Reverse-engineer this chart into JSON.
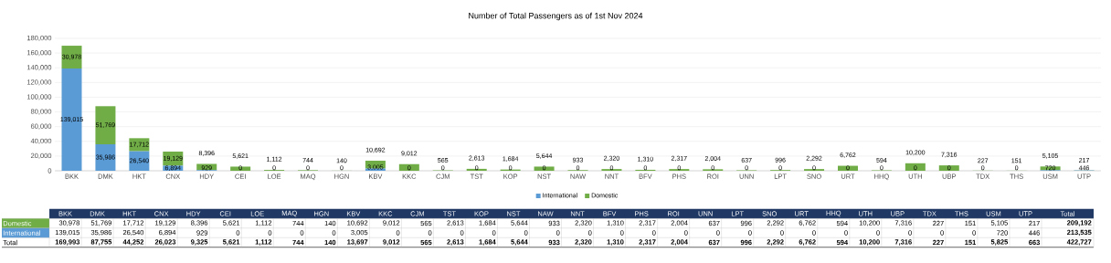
{
  "chart_data": {
    "type": "bar",
    "title": "Number of Total Passengers as of 1st Nov 2024",
    "categories": [
      "BKK",
      "DMK",
      "HKT",
      "CNX",
      "HDY",
      "CEI",
      "LOE",
      "MAQ",
      "HGN",
      "KBV",
      "KKC",
      "CJM",
      "TST",
      "KOP",
      "NST",
      "NAW",
      "NNT",
      "BFV",
      "PHS",
      "ROI",
      "UNN",
      "LPT",
      "SNO",
      "URT",
      "HHQ",
      "UTH",
      "UBP",
      "TDX",
      "THS",
      "USM",
      "UTP"
    ],
    "series": [
      {
        "name": "International",
        "color": "#5b9bd5",
        "values": [
          139015,
          35986,
          26540,
          6894,
          929,
          0,
          0,
          0,
          0,
          3005,
          0,
          0,
          0,
          0,
          0,
          0,
          0,
          0,
          0,
          0,
          0,
          0,
          0,
          0,
          0,
          0,
          0,
          0,
          0,
          720,
          446
        ],
        "value_labels": [
          "139,015",
          "35,986",
          "26,540",
          "6,894",
          "929",
          "0",
          "0",
          "0",
          "0",
          "3,005",
          "0",
          "0",
          "0",
          "0",
          "0",
          "0",
          "0",
          "0",
          "0",
          "0",
          "0",
          "0",
          "0",
          "0",
          "0",
          "0",
          "0",
          "0",
          "0",
          "720",
          "446"
        ]
      },
      {
        "name": "Domestic",
        "color": "#70ad47",
        "values": [
          30978,
          51769,
          17712,
          19129,
          8396,
          5621,
          1112,
          744,
          140,
          10692,
          9012,
          565,
          2613,
          1684,
          5644,
          933,
          2320,
          1310,
          2317,
          2004,
          637,
          996,
          2292,
          6762,
          594,
          10200,
          7316,
          227,
          151,
          5105,
          217
        ],
        "value_labels": [
          "30,978",
          "51,769",
          "17,712",
          "19,129",
          "8,396",
          "5,621",
          "1,112",
          "744",
          "140",
          "10,692",
          "9,012",
          "565",
          "2,613",
          "1,684",
          "5,644",
          "933",
          "2,320",
          "1,310",
          "2,317",
          "2,004",
          "637",
          "996",
          "2,292",
          "6,762",
          "594",
          "10,200",
          "7,316",
          "227",
          "151",
          "5,105",
          "217"
        ]
      }
    ],
    "stacked": true,
    "ylim": [
      0,
      180000
    ],
    "yticks": [
      0,
      {
        "value": 20000,
        "label": "20,000"
      },
      {
        "value": 40000,
        "label": "40,000"
      },
      {
        "value": 60000,
        "label": "60,000"
      },
      {
        "value": 80000,
        "label": "80,000"
      },
      {
        "value": 100000,
        "label": "100,000"
      },
      {
        "value": 120000,
        "label": "120,000"
      },
      {
        "value": 140000,
        "label": "140,000"
      },
      {
        "value": 160000,
        "label": "160,000"
      },
      {
        "value": 180000,
        "label": "180,000"
      }
    ],
    "grid": "y",
    "legend": "bottom",
    "annotations": [
      "Total",
      "Total",
      "209,192",
      "213,535",
      "422,727",
      "169,993",
      "87,755",
      "44,252",
      "26,023",
      "9,325",
      "5,621",
      "1,112",
      "744",
      "140",
      "13,697",
      "9,012",
      "565",
      "2,613",
      "1,684",
      "5,644",
      "933",
      "2,320",
      "1,310",
      "2,317",
      "2,004",
      "637",
      "996",
      "2,292",
      "6,762",
      "594",
      "10,200",
      "7,316",
      "227",
      "151",
      "5,825",
      "663"
    ]
  }
}
